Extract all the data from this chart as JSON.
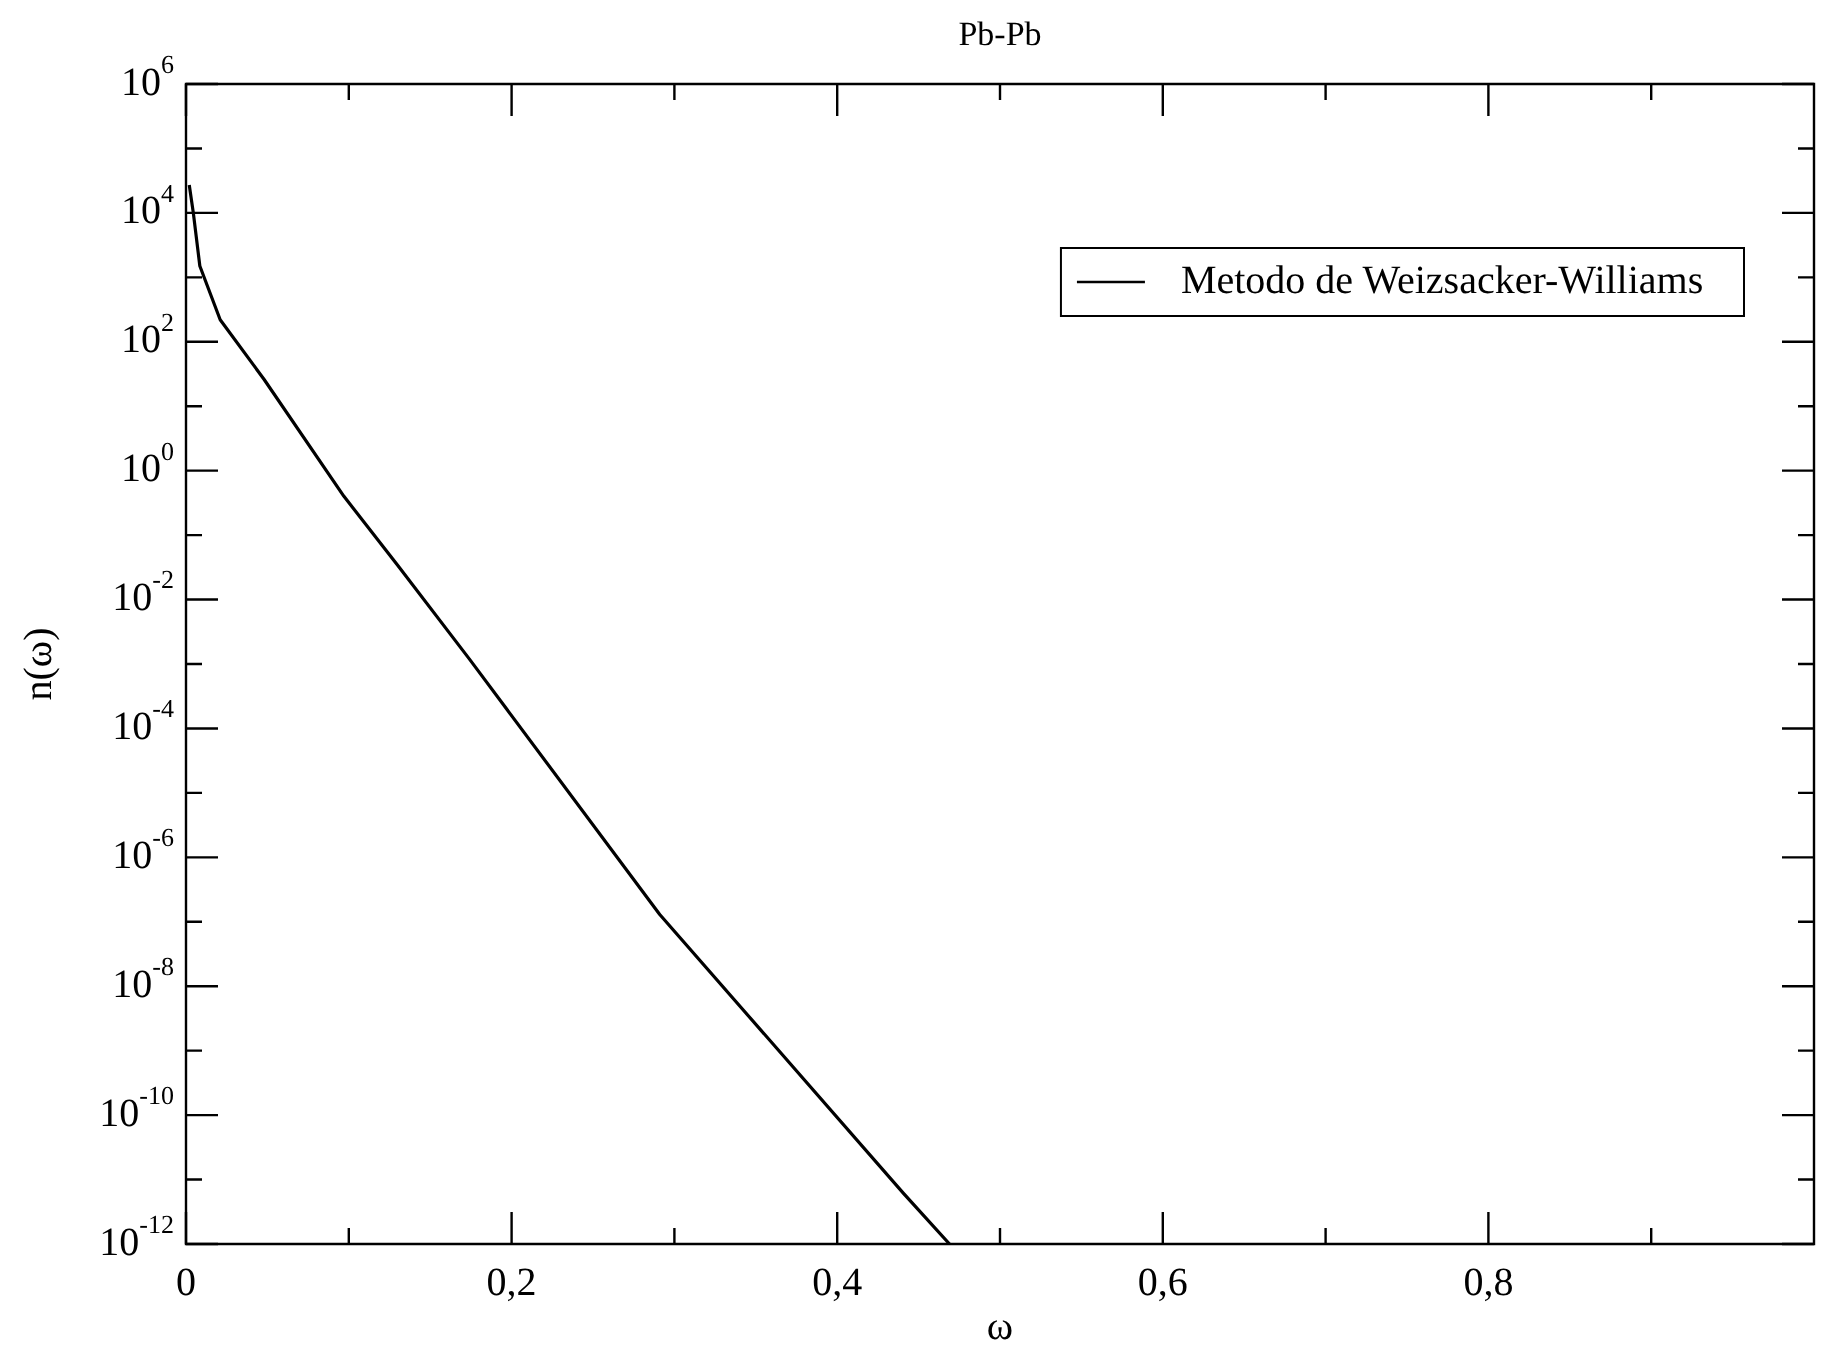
{
  "chart_data": {
    "type": "line",
    "title": "Pb-Pb",
    "xlabel": "ω",
    "ylabel": "n(ω)",
    "series": [
      {
        "name": "Metodo de Weizsacker-Williams",
        "color": "#000000",
        "x": [
          0.002,
          0.0045,
          0.0085,
          0.021,
          0.048,
          0.097,
          0.13,
          0.174,
          0.291,
          0.441,
          0.469
        ],
        "values": [
          27000.0,
          10000.0,
          1500.0,
          220.0,
          26,
          0.4,
          0.034,
          0.0012,
          1.3e-07,
          6e-12,
          1e-12
        ]
      }
    ],
    "xlim": [
      0,
      1
    ],
    "xticks": [
      0,
      {
        "value": 0.1,
        "label": null
      },
      {
        "value": 0.2,
        "label": "0,2"
      },
      {
        "value": 0.3,
        "label": null
      },
      {
        "value": 0.4,
        "label": "0,4"
      },
      {
        "value": 0.5,
        "label": null
      },
      {
        "value": 0.6,
        "label": "0,6"
      },
      {
        "value": 0.7,
        "label": null
      },
      {
        "value": 0.8,
        "label": "0,8"
      },
      {
        "value": 0.9,
        "label": null
      }
    ],
    "ylim": [
      1e-12,
      1000000.0
    ],
    "yticks": [
      {
        "value": 1e-12,
        "label": "10$^{-12}$"
      },
      {
        "value": 1e-11,
        "label": null
      },
      {
        "value": 1e-10,
        "label": "10$^{-10}$"
      },
      {
        "value": 1e-09,
        "label": null
      },
      {
        "value": 1e-08,
        "label": "10$^{-8}$"
      },
      {
        "value": 1e-07,
        "label": null
      },
      {
        "value": 1e-06,
        "label": "10$^{-6}$"
      },
      {
        "value": 1e-05,
        "label": null
      },
      {
        "value": 0.0001,
        "label": "10$^{-4}$"
      },
      {
        "value": 0.001,
        "label": null
      },
      {
        "value": 0.01,
        "label": "10$^{-2}$"
      },
      {
        "value": 0.1,
        "label": null
      },
      {
        "value": 1,
        "label": "10$^{0}$"
      },
      {
        "value": 10,
        "label": null
      },
      {
        "value": 100,
        "label": "10$^{2}$"
      },
      {
        "value": 1000,
        "label": null
      },
      {
        "value": 10000.0,
        "label": "10$^{4}$"
      },
      {
        "value": 100000.0,
        "label": null
      },
      {
        "value": 1000000.0,
        "label": "10$^{6}$"
      }
    ],
    "log": "y",
    "grid": false,
    "legend": "top right",
    "marker": "none",
    "line_style": "solid"
  }
}
